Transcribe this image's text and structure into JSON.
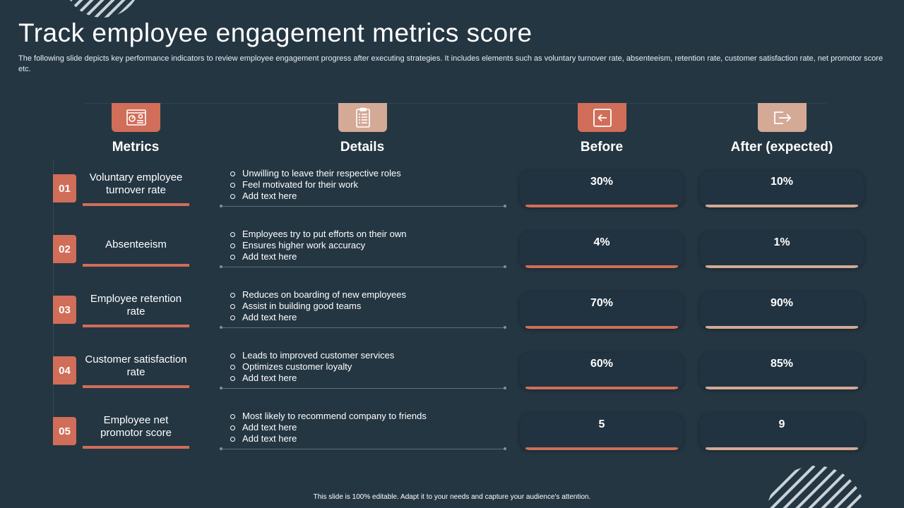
{
  "title": "Track employee engagement metrics score",
  "subtitle": "The following slide depicts key performance indicators to review employee engagement progress after executing strategies. It includes elements such as voluntary turnover rate,  absenteeism, retention rate, customer satisfaction rate, net promotor score etc.",
  "headers": {
    "metrics": "Metrics",
    "details": "Details",
    "before": "Before",
    "after": "After (expected)"
  },
  "icons": {
    "metrics": "dashboard-icon",
    "details": "checklist-icon",
    "before": "arrow-left-icon",
    "after": "exit-arrow-icon"
  },
  "colors": {
    "background": "#243642",
    "accent": "#d06e59",
    "accent_light": "#d4a996"
  },
  "rows": [
    {
      "number": "01",
      "metric": "Voluntary employee turnover rate",
      "details": [
        "Unwilling to leave their respective  roles",
        "Feel motivated  for their work",
        "Add text here"
      ],
      "before": "30%",
      "after": "10%"
    },
    {
      "number": "02",
      "metric": "Absenteeism",
      "details": [
        "Employees try to put efforts  on their own",
        "Ensures higher  work accuracy",
        "Add text here"
      ],
      "before": "4%",
      "after": "1%"
    },
    {
      "number": "03",
      "metric": "Employee retention rate",
      "details": [
        "Reduces  on boarding  of new employees",
        "Assist in building good teams",
        "Add text here"
      ],
      "before": "70%",
      "after": "90%"
    },
    {
      "number": "04",
      "metric": "Customer satisfaction rate",
      "details": [
        "Leads to improved  customer services",
        "Optimizes customer loyalty",
        "Add text here"
      ],
      "before": "60%",
      "after": "85%"
    },
    {
      "number": "05",
      "metric": "Employee net promotor score",
      "details": [
        "Most likely to recommend  company  to friends",
        "Add text here",
        "Add text here"
      ],
      "before": "5",
      "after": "9"
    }
  ],
  "footer": "This slide is 100% editable.  Adapt it to your needs and capture your audience's attention."
}
